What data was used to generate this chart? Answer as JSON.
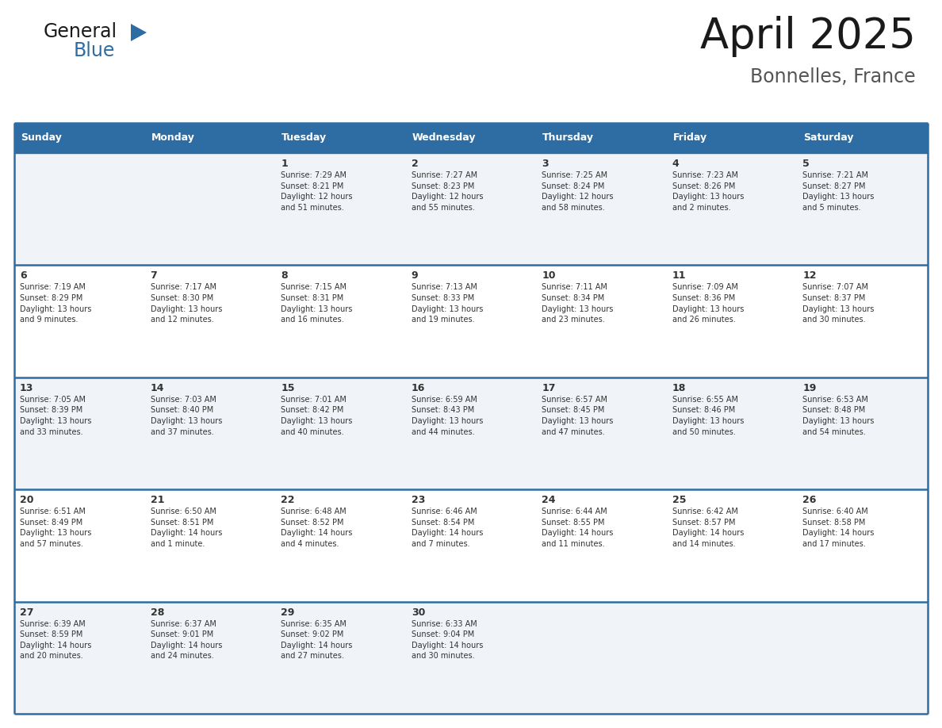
{
  "title": "April 2025",
  "subtitle": "Bonnelles, France",
  "header_bg_color": "#2E6DA4",
  "header_text_color": "#FFFFFF",
  "cell_bg_color_odd": "#F0F4F8",
  "cell_bg_color_even": "#FFFFFF",
  "border_color": "#2E6DA4",
  "text_color": "#333333",
  "days_of_week": [
    "Sunday",
    "Monday",
    "Tuesday",
    "Wednesday",
    "Thursday",
    "Friday",
    "Saturday"
  ],
  "weeks": [
    [
      {
        "day": "",
        "info": ""
      },
      {
        "day": "",
        "info": ""
      },
      {
        "day": "1",
        "info": "Sunrise: 7:29 AM\nSunset: 8:21 PM\nDaylight: 12 hours\nand 51 minutes."
      },
      {
        "day": "2",
        "info": "Sunrise: 7:27 AM\nSunset: 8:23 PM\nDaylight: 12 hours\nand 55 minutes."
      },
      {
        "day": "3",
        "info": "Sunrise: 7:25 AM\nSunset: 8:24 PM\nDaylight: 12 hours\nand 58 minutes."
      },
      {
        "day": "4",
        "info": "Sunrise: 7:23 AM\nSunset: 8:26 PM\nDaylight: 13 hours\nand 2 minutes."
      },
      {
        "day": "5",
        "info": "Sunrise: 7:21 AM\nSunset: 8:27 PM\nDaylight: 13 hours\nand 5 minutes."
      }
    ],
    [
      {
        "day": "6",
        "info": "Sunrise: 7:19 AM\nSunset: 8:29 PM\nDaylight: 13 hours\nand 9 minutes."
      },
      {
        "day": "7",
        "info": "Sunrise: 7:17 AM\nSunset: 8:30 PM\nDaylight: 13 hours\nand 12 minutes."
      },
      {
        "day": "8",
        "info": "Sunrise: 7:15 AM\nSunset: 8:31 PM\nDaylight: 13 hours\nand 16 minutes."
      },
      {
        "day": "9",
        "info": "Sunrise: 7:13 AM\nSunset: 8:33 PM\nDaylight: 13 hours\nand 19 minutes."
      },
      {
        "day": "10",
        "info": "Sunrise: 7:11 AM\nSunset: 8:34 PM\nDaylight: 13 hours\nand 23 minutes."
      },
      {
        "day": "11",
        "info": "Sunrise: 7:09 AM\nSunset: 8:36 PM\nDaylight: 13 hours\nand 26 minutes."
      },
      {
        "day": "12",
        "info": "Sunrise: 7:07 AM\nSunset: 8:37 PM\nDaylight: 13 hours\nand 30 minutes."
      }
    ],
    [
      {
        "day": "13",
        "info": "Sunrise: 7:05 AM\nSunset: 8:39 PM\nDaylight: 13 hours\nand 33 minutes."
      },
      {
        "day": "14",
        "info": "Sunrise: 7:03 AM\nSunset: 8:40 PM\nDaylight: 13 hours\nand 37 minutes."
      },
      {
        "day": "15",
        "info": "Sunrise: 7:01 AM\nSunset: 8:42 PM\nDaylight: 13 hours\nand 40 minutes."
      },
      {
        "day": "16",
        "info": "Sunrise: 6:59 AM\nSunset: 8:43 PM\nDaylight: 13 hours\nand 44 minutes."
      },
      {
        "day": "17",
        "info": "Sunrise: 6:57 AM\nSunset: 8:45 PM\nDaylight: 13 hours\nand 47 minutes."
      },
      {
        "day": "18",
        "info": "Sunrise: 6:55 AM\nSunset: 8:46 PM\nDaylight: 13 hours\nand 50 minutes."
      },
      {
        "day": "19",
        "info": "Sunrise: 6:53 AM\nSunset: 8:48 PM\nDaylight: 13 hours\nand 54 minutes."
      }
    ],
    [
      {
        "day": "20",
        "info": "Sunrise: 6:51 AM\nSunset: 8:49 PM\nDaylight: 13 hours\nand 57 minutes."
      },
      {
        "day": "21",
        "info": "Sunrise: 6:50 AM\nSunset: 8:51 PM\nDaylight: 14 hours\nand 1 minute."
      },
      {
        "day": "22",
        "info": "Sunrise: 6:48 AM\nSunset: 8:52 PM\nDaylight: 14 hours\nand 4 minutes."
      },
      {
        "day": "23",
        "info": "Sunrise: 6:46 AM\nSunset: 8:54 PM\nDaylight: 14 hours\nand 7 minutes."
      },
      {
        "day": "24",
        "info": "Sunrise: 6:44 AM\nSunset: 8:55 PM\nDaylight: 14 hours\nand 11 minutes."
      },
      {
        "day": "25",
        "info": "Sunrise: 6:42 AM\nSunset: 8:57 PM\nDaylight: 14 hours\nand 14 minutes."
      },
      {
        "day": "26",
        "info": "Sunrise: 6:40 AM\nSunset: 8:58 PM\nDaylight: 14 hours\nand 17 minutes."
      }
    ],
    [
      {
        "day": "27",
        "info": "Sunrise: 6:39 AM\nSunset: 8:59 PM\nDaylight: 14 hours\nand 20 minutes."
      },
      {
        "day": "28",
        "info": "Sunrise: 6:37 AM\nSunset: 9:01 PM\nDaylight: 14 hours\nand 24 minutes."
      },
      {
        "day": "29",
        "info": "Sunrise: 6:35 AM\nSunset: 9:02 PM\nDaylight: 14 hours\nand 27 minutes."
      },
      {
        "day": "30",
        "info": "Sunrise: 6:33 AM\nSunset: 9:04 PM\nDaylight: 14 hours\nand 30 minutes."
      },
      {
        "day": "",
        "info": ""
      },
      {
        "day": "",
        "info": ""
      },
      {
        "day": "",
        "info": ""
      }
    ]
  ],
  "logo_general_color": "#1a1a1a",
  "logo_blue_color": "#2E6DA4",
  "logo_triangle_color": "#2E6DA4",
  "title_color": "#1a1a1a",
  "subtitle_color": "#555555"
}
